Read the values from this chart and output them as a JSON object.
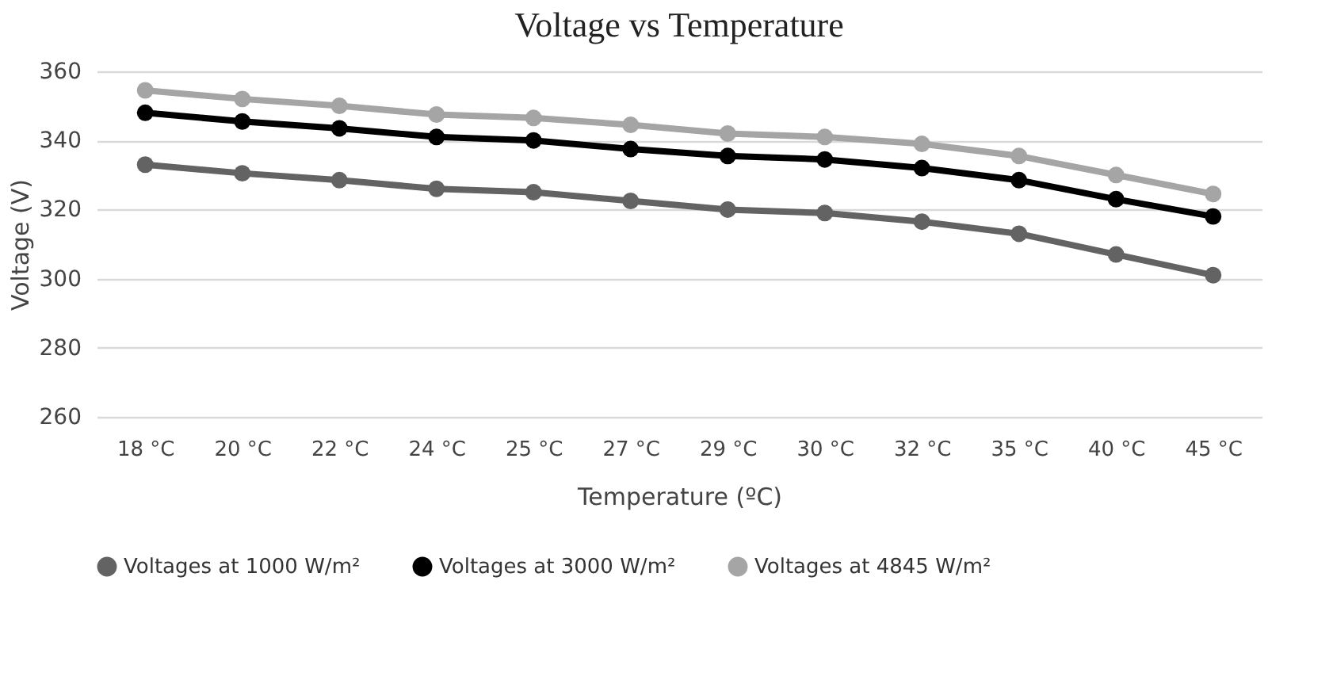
{
  "chart_data": {
    "type": "line",
    "title": "Voltage vs Temperature",
    "xlabel": "Temperature (ºC)",
    "ylabel": "Voltage (V)",
    "categories": [
      "18 °C",
      "20 °C",
      "22 °C",
      "24 °C",
      "25 °C",
      "27 °C",
      "29 °C",
      "30 °C",
      "32 °C",
      "35 °C",
      "40 °C",
      "45 °C"
    ],
    "series": [
      {
        "name": "Voltages at 1000 W/m²",
        "color": "#636363",
        "values": [
          333,
          330.5,
          328.5,
          326,
          325,
          322.5,
          320,
          319,
          316.5,
          313,
          307,
          301
        ]
      },
      {
        "name": "Voltages at 3000 W/m²",
        "color": "#000000",
        "values": [
          348,
          345.5,
          343.5,
          341,
          340,
          337.5,
          335.5,
          334.5,
          332,
          328.5,
          323,
          318
        ]
      },
      {
        "name": "Voltages at 4845 W/m²",
        "color": "#a5a5a5",
        "values": [
          354.5,
          352,
          350,
          347.5,
          346.5,
          344.5,
          342,
          341,
          339,
          335.5,
          330,
          324.5
        ]
      }
    ],
    "ylim": [
      260,
      360
    ],
    "yticks": [
      260,
      280,
      300,
      320,
      340,
      360
    ],
    "grid": "y",
    "legend": "bottom",
    "marker": "circle",
    "line_style": "solid"
  }
}
